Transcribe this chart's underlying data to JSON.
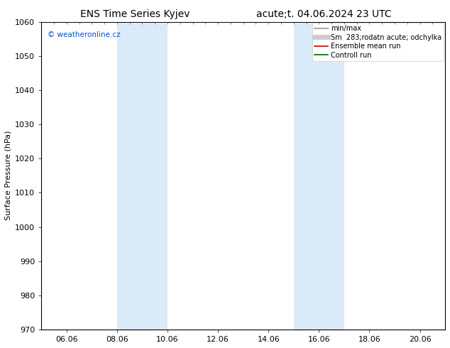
{
  "title_left": "ENS Time Series Kyjev",
  "title_right": "acute;t. 04.06.2024 23 UTC",
  "ylabel": "Surface Pressure (hPa)",
  "ylim": [
    970,
    1060
  ],
  "yticks": [
    970,
    980,
    990,
    1000,
    1010,
    1020,
    1030,
    1040,
    1050,
    1060
  ],
  "xtick_labels": [
    "06.06",
    "08.06",
    "10.06",
    "12.06",
    "14.06",
    "16.06",
    "18.06",
    "20.06"
  ],
  "xtick_positions": [
    1,
    3,
    5,
    7,
    9,
    11,
    13,
    15
  ],
  "xlim": [
    0,
    16
  ],
  "shaded_bands": [
    {
      "x_start": 3,
      "x_end": 5
    },
    {
      "x_start": 10,
      "x_end": 12
    }
  ],
  "band_color": "#daeaf8",
  "watermark_text": "© weatheronline.cz",
  "watermark_color": "#0055cc",
  "legend_entries": [
    {
      "label": "min/max",
      "color": "#aaaaaa",
      "lw": 1.5
    },
    {
      "label": "Sm  283;rodatn acute; odchylka",
      "color": "#cccccc",
      "lw": 5
    },
    {
      "label": "Ensemble mean run",
      "color": "#cc0000",
      "lw": 1.2
    },
    {
      "label": "Controll run",
      "color": "#006600",
      "lw": 1.2
    }
  ],
  "bg_color": "#ffffff",
  "font_size": 8,
  "title_fontsize": 10,
  "legend_fontsize": 7,
  "ylabel_fontsize": 8
}
